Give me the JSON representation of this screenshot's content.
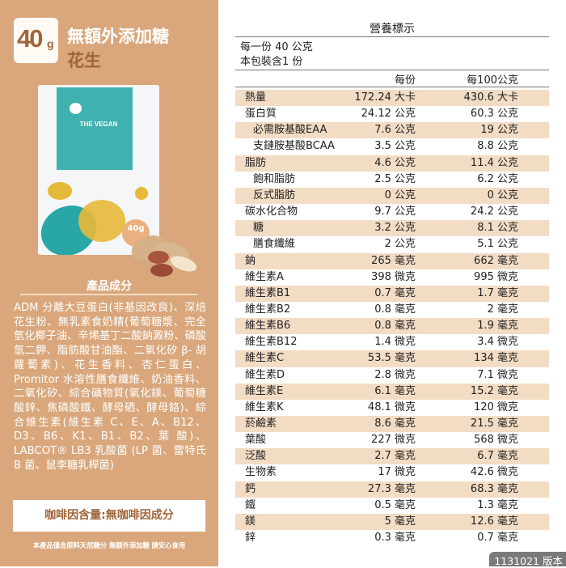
{
  "left": {
    "badge_number": "40",
    "badge_unit": "g",
    "title": "無額外添加糖",
    "flavor": "花生",
    "package": {
      "brand": "THE VEGAN",
      "badge": "40g"
    },
    "ingredients_heading": "產品成分",
    "ingredients": "ADM 分離大豆蛋白(非基因改良)、深焙花生粉、無乳素食奶精(葡萄糖漿、完全氫化椰子油、辛烯基丁二酸鈉澱粉、磷酸氫二鉀、脂肪酸甘油酯、二氧化矽 β- 胡蘿蔔素)、花生香料、杏仁蛋白、Promitor 水溶性膳食纖維、奶油香料、二氧化矽、綜合礦物質(氧化鎂、葡萄糖酸鋅、焦磷酸鐵、酵母硒、酵母鉻)、綜合維生素(維生素 C、E、A、B12、D3、B6、K1、B1、B2、葉 酸)、LABCOT® LB3 乳酸菌 (LP 菌、雷特氏 B 菌、鼠李糖乳桿菌)",
    "caffeine": "咖啡因含量:無咖啡因成分",
    "footer": "本產品僅含原料天然糖分 無額外添加糖 請安心食用"
  },
  "nutrition": {
    "title": "營養標示",
    "serving_size": "每一份 40 公克",
    "servings": "本包裝含1 份",
    "col_per_serving": "每份",
    "col_per_100": "每100公克",
    "rows": [
      {
        "name": "熱量",
        "per": "172.24 大卡",
        "per100": "430.6 大卡",
        "indent": false
      },
      {
        "name": "蛋白質",
        "per": "24.12 公克",
        "per100": "60.3 公克",
        "indent": false
      },
      {
        "name": "必需胺基酸EAA",
        "per": "7.6 公克",
        "per100": "19 公克",
        "indent": true
      },
      {
        "name": "支鏈胺基酸BCAA",
        "per": "3.5 公克",
        "per100": "8.8 公克",
        "indent": true
      },
      {
        "name": "脂肪",
        "per": "4.6 公克",
        "per100": "11.4 公克",
        "indent": false
      },
      {
        "name": "飽和脂肪",
        "per": "2.5 公克",
        "per100": "6.2 公克",
        "indent": true
      },
      {
        "name": "反式脂肪",
        "per": "0 公克",
        "per100": "0 公克",
        "indent": true
      },
      {
        "name": "碳水化合物",
        "per": "9.7 公克",
        "per100": "24.2 公克",
        "indent": false
      },
      {
        "name": "糖",
        "per": "3.2 公克",
        "per100": "8.1 公克",
        "indent": true
      },
      {
        "name": "膳食纖維",
        "per": "2 公克",
        "per100": "5.1 公克",
        "indent": true
      },
      {
        "name": "鈉",
        "per": "265 毫克",
        "per100": "662 毫克",
        "indent": false
      },
      {
        "name": "維生素A",
        "per": "398 微克",
        "per100": "995 微克",
        "indent": false
      },
      {
        "name": "維生素B1",
        "per": "0.7 毫克",
        "per100": "1.7 毫克",
        "indent": false
      },
      {
        "name": "維生素B2",
        "per": "0.8 毫克",
        "per100": "2 毫克",
        "indent": false
      },
      {
        "name": "維生素B6",
        "per": "0.8 毫克",
        "per100": "1.9 毫克",
        "indent": false
      },
      {
        "name": "維生素B12",
        "per": "1.4 微克",
        "per100": "3.4 微克",
        "indent": false
      },
      {
        "name": "維生素C",
        "per": "53.5 毫克",
        "per100": "134 毫克",
        "indent": false
      },
      {
        "name": "維生素D",
        "per": "2.8 微克",
        "per100": "7.1 微克",
        "indent": false
      },
      {
        "name": "維生素E",
        "per": "6.1 毫克",
        "per100": "15.2 毫克",
        "indent": false
      },
      {
        "name": "維生素K",
        "per": "48.1 微克",
        "per100": "120 微克",
        "indent": false
      },
      {
        "name": "菸鹼素",
        "per": "8.6 毫克",
        "per100": "21.5 毫克",
        "indent": false
      },
      {
        "name": "葉酸",
        "per": "227 微克",
        "per100": "568 微克",
        "indent": false
      },
      {
        "name": "泛酸",
        "per": "2.7 毫克",
        "per100": "6.7 毫克",
        "indent": false
      },
      {
        "name": "生物素",
        "per": "17 微克",
        "per100": "42.6 微克",
        "indent": false
      },
      {
        "name": "鈣",
        "per": "27.3 毫克",
        "per100": "68.3 毫克",
        "indent": false
      },
      {
        "name": "鐵",
        "per": "0.5 毫克",
        "per100": "1.3 毫克",
        "indent": false
      },
      {
        "name": "鎂",
        "per": "5 毫克",
        "per100": "12.6 毫克",
        "indent": false
      },
      {
        "name": "鋅",
        "per": "0.3 毫克",
        "per100": "0.7 毫克",
        "indent": false
      }
    ]
  },
  "version": "1131021 版本",
  "colors": {
    "panel": "#d9a77b",
    "brown": "#9f653a",
    "row_shade": "#f2dcc4",
    "teal": "#3fb2b0"
  }
}
